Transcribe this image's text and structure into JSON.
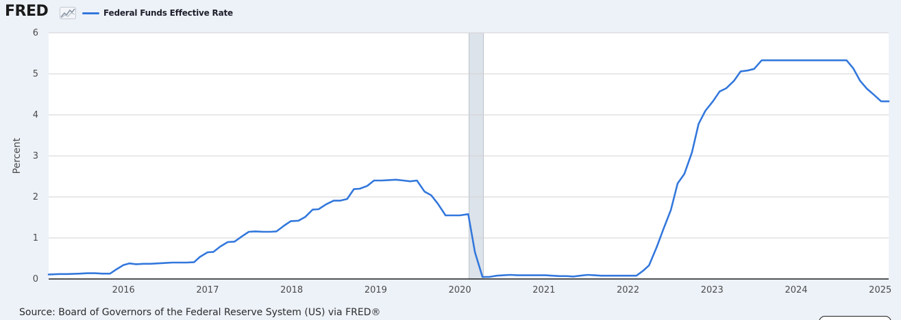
{
  "header": {
    "logo_text": "FRED",
    "logo_mark_icon": "line-graph-icon"
  },
  "footer": {
    "source": "Source: Board of Governors of the Federal Reserve System (US) via FRED®"
  },
  "colors": {
    "background": "#edf2f9",
    "plot_background": "#ffffff",
    "series": "#3277dc",
    "gridline": "#d2d2d2",
    "recession_shading": "#dde3ea"
  },
  "chart_data": {
    "type": "line",
    "title": "",
    "xlabel": "",
    "ylabel": "Percent",
    "xlim": [
      2015.11,
      2025.1
    ],
    "ylim": [
      0,
      6
    ],
    "y_ticks": [
      0,
      1,
      2,
      3,
      4,
      5,
      6
    ],
    "x_ticks": [
      {
        "value": 2016,
        "label": "2016"
      },
      {
        "value": 2017,
        "label": "2017"
      },
      {
        "value": 2018,
        "label": "2018"
      },
      {
        "value": 2019,
        "label": "2019"
      },
      {
        "value": 2020,
        "label": "2020"
      },
      {
        "value": 2021,
        "label": "2021"
      },
      {
        "value": 2022,
        "label": "2022"
      },
      {
        "value": 2023,
        "label": "2023"
      },
      {
        "value": 2024,
        "label": "2024"
      },
      {
        "value": 2025,
        "label": "2025"
      }
    ],
    "grid": true,
    "legend": "top-left",
    "recessions": [
      {
        "start": 2020.11,
        "end": 2020.28
      }
    ],
    "series": [
      {
        "name": "Federal Funds Effective Rate",
        "x": [
          2015.11,
          2015.24,
          2015.33,
          2015.48,
          2015.57,
          2015.66,
          2015.75,
          2015.84,
          2015.92,
          2016.0,
          2016.07,
          2016.15,
          2016.24,
          2016.32,
          2016.41,
          2016.5,
          2016.58,
          2016.66,
          2016.75,
          2016.84,
          2016.91,
          2017.0,
          2017.07,
          2017.15,
          2017.24,
          2017.32,
          2017.41,
          2017.49,
          2017.57,
          2017.66,
          2017.75,
          2017.82,
          2017.91,
          2017.99,
          2018.08,
          2018.16,
          2018.25,
          2018.32,
          2018.41,
          2018.5,
          2018.58,
          2018.66,
          2018.74,
          2018.81,
          2018.9,
          2018.98,
          2019.07,
          2019.15,
          2019.24,
          2019.33,
          2019.41,
          2019.49,
          2019.58,
          2019.66,
          2019.74,
          2019.83,
          2019.91,
          2020.0,
          2020.1,
          2020.18,
          2020.27,
          2020.35,
          2020.44,
          2020.52,
          2020.6,
          2020.69,
          2020.77,
          2020.85,
          2020.93,
          2021.02,
          2021.1,
          2021.19,
          2021.27,
          2021.35,
          2021.43,
          2021.52,
          2021.6,
          2021.68,
          2021.77,
          2021.85,
          2021.93,
          2022.02,
          2022.1,
          2022.18,
          2022.25,
          2022.34,
          2022.42,
          2022.51,
          2022.59,
          2022.67,
          2022.76,
          2022.84,
          2022.92,
          2023.01,
          2023.09,
          2023.17,
          2023.26,
          2023.34,
          2023.42,
          2023.5,
          2023.59,
          2023.67,
          2023.75,
          2023.84,
          2023.93,
          2024.01,
          2024.1,
          2024.18,
          2024.26,
          2024.35,
          2024.43,
          2024.51,
          2024.6,
          2024.68,
          2024.76,
          2024.84,
          2024.93,
          2025.01,
          2025.1
        ],
        "y": [
          0.11,
          0.12,
          0.12,
          0.13,
          0.14,
          0.14,
          0.13,
          0.13,
          0.24,
          0.34,
          0.38,
          0.36,
          0.37,
          0.37,
          0.38,
          0.39,
          0.4,
          0.4,
          0.4,
          0.41,
          0.54,
          0.65,
          0.66,
          0.79,
          0.9,
          0.91,
          1.04,
          1.15,
          1.16,
          1.15,
          1.15,
          1.16,
          1.3,
          1.41,
          1.42,
          1.51,
          1.69,
          1.7,
          1.82,
          1.91,
          1.91,
          1.95,
          2.19,
          2.2,
          2.27,
          2.4,
          2.4,
          2.41,
          2.42,
          2.4,
          2.38,
          2.4,
          2.13,
          2.04,
          1.83,
          1.55,
          1.55,
          1.55,
          1.58,
          0.65,
          0.05,
          0.05,
          0.08,
          0.09,
          0.1,
          0.09,
          0.09,
          0.09,
          0.09,
          0.09,
          0.08,
          0.07,
          0.07,
          0.06,
          0.08,
          0.1,
          0.09,
          0.08,
          0.08,
          0.08,
          0.08,
          0.08,
          0.08,
          0.2,
          0.33,
          0.77,
          1.21,
          1.68,
          2.33,
          2.56,
          3.08,
          3.78,
          4.1,
          4.33,
          4.57,
          4.65,
          4.83,
          5.06,
          5.08,
          5.12,
          5.33,
          5.33,
          5.33,
          5.33,
          5.33,
          5.33,
          5.33,
          5.33,
          5.33,
          5.33,
          5.33,
          5.33,
          5.33,
          5.13,
          4.83,
          4.64,
          4.48,
          4.33,
          4.33
        ]
      }
    ]
  }
}
